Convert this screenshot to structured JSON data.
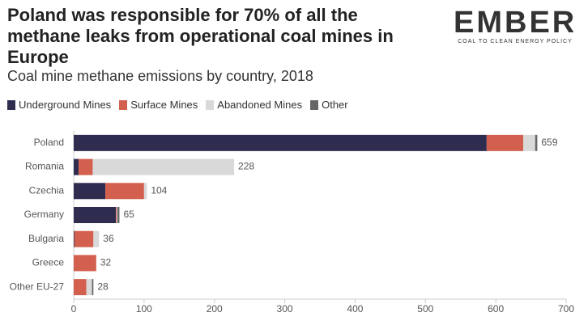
{
  "chart_data": {
    "type": "stacked-barh",
    "title": "Poland was responsible for 70% of all the methane leaks from operational coal mines in Europe",
    "subtitle": "Coal mine methane emissions by country, 2018",
    "logo": {
      "name": "EMBER",
      "tagline": "COAL TO CLEAN ENERGY POLICY"
    },
    "categories": [
      "Poland",
      "Romania",
      "Czechia",
      "Germany",
      "Bulgaria",
      "Greece",
      "Other EU-27"
    ],
    "series": [
      {
        "name": "Underground Mines",
        "color": "#2f2d4f",
        "values": [
          587,
          7,
          45,
          60,
          1,
          0,
          0
        ]
      },
      {
        "name": "Surface Mines",
        "color": "#d35f4f",
        "values": [
          52,
          20,
          55,
          1,
          27,
          32,
          18
        ]
      },
      {
        "name": "Abandoned Mines",
        "color": "#d9d9d9",
        "values": [
          17,
          201,
          4,
          1,
          8,
          0,
          8
        ]
      },
      {
        "name": "Other",
        "color": "#666666",
        "values": [
          3,
          0,
          0,
          3,
          0,
          0,
          2
        ]
      }
    ],
    "totals": [
      659,
      228,
      104,
      65,
      36,
      32,
      28
    ],
    "xlim": [
      0,
      700
    ],
    "xticks": [
      0,
      100,
      200,
      300,
      400,
      500,
      600,
      700
    ]
  }
}
